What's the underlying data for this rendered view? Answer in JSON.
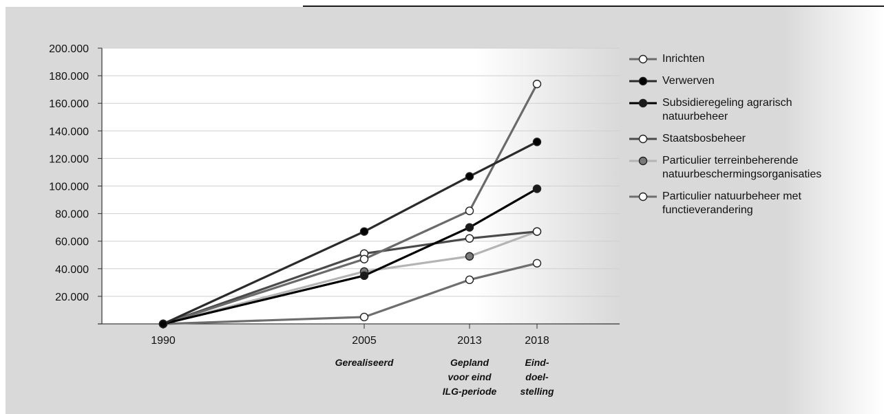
{
  "chart_data": {
    "type": "line",
    "x": [
      "1990",
      "2005",
      "2013",
      "2018"
    ],
    "x_sublabels": [
      "",
      "Gerealiseerd",
      "Gepland\nvoor eind\nILG-periode",
      "Eind-\ndoel-\nstelling"
    ],
    "yticks": [
      "20.000",
      "40.000",
      "60.000",
      "80.000",
      "100.000",
      "120.000",
      "140.000",
      "160.000",
      "180.000",
      "200.000"
    ],
    "ylim": [
      0,
      200000
    ],
    "grid": true,
    "legend_position": "right",
    "series": [
      {
        "name": "Inrichten",
        "values": [
          0,
          47000,
          82000,
          174000
        ],
        "color": "#6a6a6a",
        "marker": "#ffffff"
      },
      {
        "name": "Verwerven",
        "values": [
          0,
          67000,
          107000,
          132000
        ],
        "color": "#2a2a2a",
        "marker": "#000000"
      },
      {
        "name": "Subsidieregeling agrarisch\nnatuurbeheer",
        "values": [
          0,
          35000,
          70000,
          98000
        ],
        "color": "#000000",
        "marker": "#1a1a1a"
      },
      {
        "name": "Staatsbosbeheer",
        "values": [
          0,
          51000,
          62000,
          67000
        ],
        "color": "#4a4a4a",
        "marker": "#ffffff"
      },
      {
        "name": "Particulier terreinbeherende\nnatuurbeschermingsorganisaties",
        "values": [
          0,
          38000,
          49000,
          67000
        ],
        "color": "#b4b4b4",
        "marker": "#7a7a7a"
      },
      {
        "name": "Particulier natuurbeheer met\nfunctieverandering",
        "values": [
          0,
          5000,
          32000,
          44000
        ],
        "color": "#6e6e6e",
        "marker": "#ffffff"
      }
    ]
  }
}
